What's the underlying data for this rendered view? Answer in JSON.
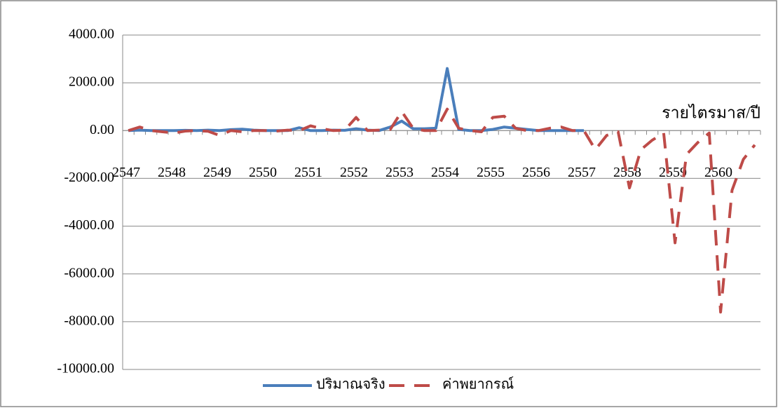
{
  "chart_data": {
    "type": "line",
    "x_label": "รายไตรมาส/ปี",
    "categories": [
      "2547",
      null,
      null,
      null,
      "2548",
      null,
      null,
      null,
      "2549",
      null,
      null,
      null,
      "2550",
      null,
      null,
      null,
      "2551",
      null,
      null,
      null,
      "2552",
      null,
      null,
      null,
      "2553",
      null,
      null,
      null,
      "2554",
      null,
      null,
      null,
      "2555",
      null,
      null,
      null,
      "2556",
      null,
      null,
      null,
      "2557",
      null,
      null,
      null,
      "2558",
      null,
      null,
      null,
      "2559",
      null,
      null,
      null,
      "2560",
      null,
      null,
      null
    ],
    "series": [
      {
        "name": "ปริมาณจริง",
        "color": "#4a7ebb",
        "dashed": false,
        "values": [
          0,
          20,
          0,
          0,
          0,
          10,
          0,
          20,
          0,
          40,
          60,
          20,
          0,
          0,
          0,
          120,
          0,
          0,
          20,
          10,
          80,
          20,
          0,
          150,
          400,
          80,
          80,
          100,
          2600,
          50,
          0,
          0,
          50,
          150,
          100,
          50,
          0,
          0,
          0,
          0,
          0,
          null,
          null,
          null,
          null,
          null,
          null,
          null,
          null,
          null,
          null,
          null,
          null,
          null,
          null,
          null
        ]
      },
      {
        "name": "ค่าพยากรณ์",
        "color": "#be4b48",
        "dashed": true,
        "values": [
          0,
          150,
          0,
          -50,
          -100,
          -20,
          0,
          -30,
          -200,
          0,
          -50,
          0,
          0,
          -20,
          20,
          0,
          200,
          80,
          0,
          20,
          550,
          0,
          20,
          50,
          800,
          100,
          0,
          0,
          900,
          100,
          0,
          -50,
          550,
          600,
          100,
          0,
          0,
          100,
          150,
          0,
          0,
          -800,
          -200,
          -50,
          -2400,
          -800,
          -400,
          -100,
          -4700,
          -1000,
          -500,
          -100,
          -7600,
          -2500,
          -1200,
          -600
        ]
      }
    ],
    "ylim": [
      -10000,
      4000
    ],
    "yticks": [
      {
        "value": -10000,
        "label": "-10000.00"
      },
      {
        "value": -8000,
        "label": "-8000.00"
      },
      {
        "value": -6000,
        "label": "-6000.00"
      },
      {
        "value": -4000,
        "label": "-4000.00"
      },
      {
        "value": -2000,
        "label": "-2000.00"
      },
      {
        "value": 0,
        "label": "0.00"
      },
      {
        "value": 2000,
        "label": "2000.00"
      },
      {
        "value": 4000,
        "label": "4000.00"
      }
    ],
    "grid": true,
    "legend": "bottom"
  }
}
